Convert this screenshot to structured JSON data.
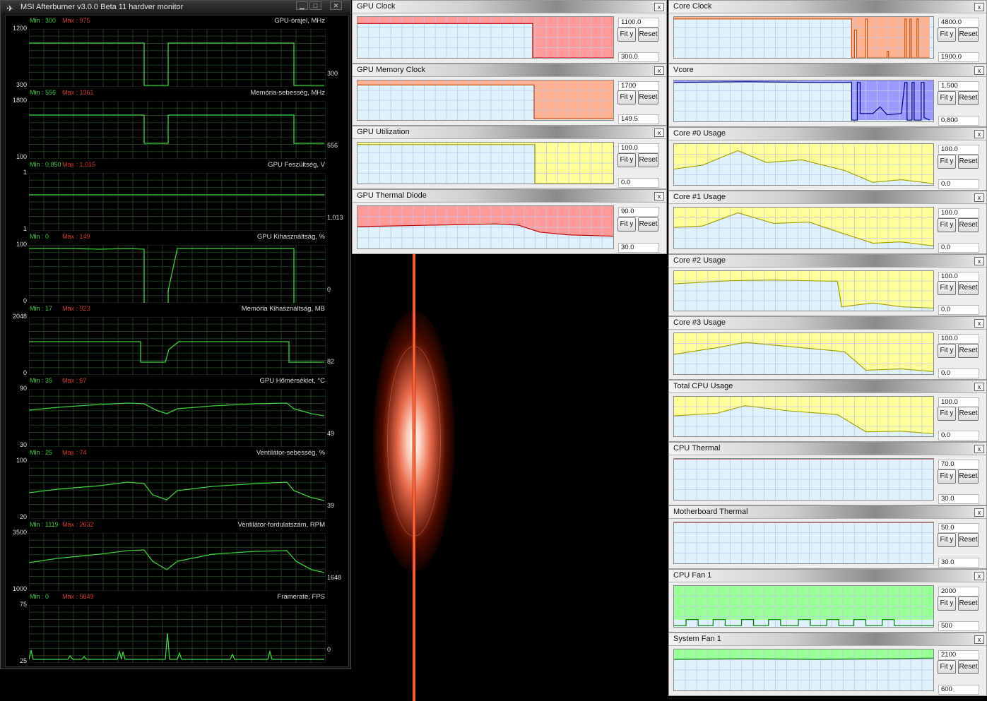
{
  "afterburner": {
    "title": "MSI Afterburner v3.0.0 Beta 11 hardver monitor",
    "logo": "✈",
    "min_btn": "▁",
    "max_btn": "□",
    "close_btn": "✕",
    "graphs": [
      {
        "min": "Min : 300",
        "max": "Max : 975",
        "name": "GPU-órajel, MHz",
        "ymax": "1200",
        "ymin": "300",
        "cur": "300"
      },
      {
        "min": "Min : 556",
        "max": "Max : 1361",
        "name": "Memória-sebesség, MHz",
        "ymax": "1800",
        "ymin": "100",
        "cur": "556"
      },
      {
        "min": "Min : 0.850",
        "max": "Max : 1.015",
        "name": "GPU Feszültség, V",
        "ymax": "1",
        "ymin": "1",
        "cur": "1.013"
      },
      {
        "min": "Min : 0",
        "max": "Max : 149",
        "name": "GPU Kihasználtság, %",
        "ymax": "100",
        "ymin": "0",
        "cur": "0"
      },
      {
        "min": "Min : 17",
        "max": "Max : 923",
        "name": "Memória Kihasználtság, MB",
        "ymax": "2048",
        "ymin": "0",
        "cur": "82"
      },
      {
        "min": "Min : 35",
        "max": "Max : 67",
        "name": "GPU Hőmérséklet, °C",
        "ymax": "90",
        "ymin": "30",
        "cur": "49"
      },
      {
        "min": "Min : 25",
        "max": "Max : 74",
        "name": "Ventilátor-sebesség, %",
        "ymax": "100",
        "ymin": "20",
        "cur": "39"
      },
      {
        "min": "Min : 1119",
        "max": "Max : 2632",
        "name": "Ventilátor-fordulatszám, RPM",
        "ymax": "3500",
        "ymin": "1000",
        "cur": "1648"
      },
      {
        "min": "Min : 0",
        "max": "Max : 5849",
        "name": "Framerate, FPS",
        "ymax": "75",
        "ymin": "25",
        "cur": "0"
      }
    ]
  },
  "panels": [
    {
      "title": "GPU Clock",
      "max": "1100.0",
      "min": "300.0",
      "fit": "Fit y",
      "reset": "Reset",
      "close": "x",
      "fill": "#ff9a9a",
      "line": "#c00000"
    },
    {
      "title": "GPU Memory Clock",
      "max": "1700",
      "min": "149.5",
      "fit": "Fit y",
      "reset": "Reset",
      "close": "x",
      "fill": "#ffb291",
      "line": "#c04000"
    },
    {
      "title": "GPU Utilization",
      "max": "100.0",
      "min": "0.0",
      "fit": "Fit y",
      "reset": "Reset",
      "close": "x",
      "fill": "#ffff99",
      "line": "#a0a000"
    },
    {
      "title": "GPU Thermal Diode",
      "max": "90.0",
      "min": "30.0",
      "fit": "Fit y",
      "reset": "Reset",
      "close": "x",
      "fill": "#ff9a9a",
      "line": "#c00000"
    },
    {
      "title": "Core Clock",
      "max": "4800.0",
      "min": "1900.0",
      "fit": "Fit y",
      "reset": "Reset",
      "close": "x",
      "fill": "#ffb291",
      "line": "#d05000"
    },
    {
      "title": "Vcore",
      "max": "1.500",
      "min": "0.800",
      "fit": "Fit y",
      "reset": "Reset",
      "close": "x",
      "fill": "#9a9aff",
      "line": "#000080"
    },
    {
      "title": "Core #0 Usage",
      "max": "100.0",
      "min": "0.0",
      "fit": "Fit y",
      "reset": "Reset",
      "close": "x",
      "fill": "#ffff99",
      "line": "#a0a000"
    },
    {
      "title": "Core #1 Usage",
      "max": "100.0",
      "min": "0.0",
      "fit": "Fit y",
      "reset": "Reset",
      "close": "x",
      "fill": "#ffff99",
      "line": "#a0a000"
    },
    {
      "title": "Core #2 Usage",
      "max": "100.0",
      "min": "0.0",
      "fit": "Fit y",
      "reset": "Reset",
      "close": "x",
      "fill": "#ffff99",
      "line": "#a0a000"
    },
    {
      "title": "Core #3 Usage",
      "max": "100.0",
      "min": "0.0",
      "fit": "Fit y",
      "reset": "Reset",
      "close": "x",
      "fill": "#ffff99",
      "line": "#a0a000"
    },
    {
      "title": "Total CPU Usage",
      "max": "100.0",
      "min": "0.0",
      "fit": "Fit y",
      "reset": "Reset",
      "close": "x",
      "fill": "#ffff99",
      "line": "#a0a000"
    },
    {
      "title": "CPU Thermal",
      "max": "70.0",
      "min": "30.0",
      "fit": "Fit y",
      "reset": "Reset",
      "close": "x",
      "fill": "#ff9a9a",
      "line": "#c00000"
    },
    {
      "title": "Motherboard Thermal",
      "max": "50.0",
      "min": "30.0",
      "fit": "Fit y",
      "reset": "Reset",
      "close": "x",
      "fill": "#ff9a9a",
      "line": "#c00000"
    },
    {
      "title": "CPU Fan 1",
      "max": "2000",
      "min": "500",
      "fit": "Fit y",
      "reset": "Reset",
      "close": "x",
      "fill": "#99ff99",
      "line": "#008000"
    },
    {
      "title": "System Fan 1",
      "max": "2100",
      "min": "600",
      "fit": "Fit y",
      "reset": "Reset",
      "close": "x",
      "fill": "#99ff99",
      "line": "#008000"
    }
  ]
}
